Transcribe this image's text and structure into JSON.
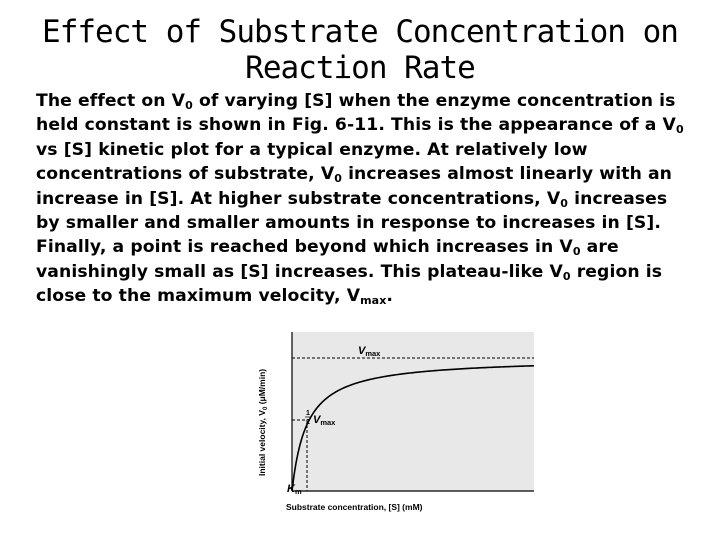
{
  "slide": {
    "title_line1": "Effect of Substrate Concentration on",
    "title_line2": "Reaction Rate"
  },
  "paragraph": [
    [
      {
        "t": "The effect on V"
      },
      {
        "s": "0"
      },
      {
        "t": " of varying [S] when the enzyme concentration is"
      }
    ],
    [
      {
        "t": "held constant is shown in Fig. 6-11. This is the appearance of a V"
      },
      {
        "s": "0"
      }
    ],
    [
      {
        "t": "vs [S] kinetic plot for a typical enzyme. At relatively low"
      }
    ],
    [
      {
        "t": "concentrations of substrate, V"
      },
      {
        "s": "0"
      },
      {
        "t": " increases almost linearly with an"
      }
    ],
    [
      {
        "t": "increase in [S]. At higher substrate concentrations, V"
      },
      {
        "s": "0"
      },
      {
        "t": " increases"
      }
    ],
    [
      {
        "t": "by smaller and smaller amounts in response to increases in [S]."
      }
    ],
    [
      {
        "t": "Finally, a point is reached beyond which increases in V"
      },
      {
        "s": "0"
      },
      {
        "t": " are"
      }
    ],
    [
      {
        "t": "vanishingly small as [S] increases. This plateau-like V"
      },
      {
        "s": "0"
      },
      {
        "t": " region is"
      }
    ],
    [
      {
        "t": "close to the maximum velocity, V"
      },
      {
        "s": "max"
      },
      {
        "t": "."
      }
    ]
  ],
  "figure": {
    "y_axis_label_parts": [
      "Initial velocity, V",
      "0",
      " (μM/min)"
    ],
    "x_axis_label": "Substrate concentration, [S] (mM)",
    "vmax_label": "V",
    "vmax_sub": "max",
    "half_prefix_num": "1",
    "half_prefix_den": "2",
    "half_v_label": "V",
    "half_v_sub": "max",
    "km_label": "K",
    "km_sub": "m",
    "colors": {
      "plot_bg": "#e8e8e8",
      "curve": "#000000"
    }
  }
}
